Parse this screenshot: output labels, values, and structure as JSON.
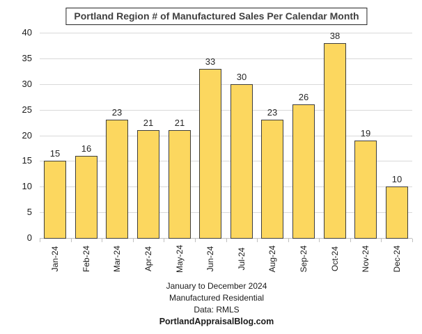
{
  "chart_data": {
    "type": "bar",
    "title": "Portland Region # of Manufactured Sales Per Calendar Month",
    "categories": [
      "Jan-24",
      "Feb-24",
      "Mar-24",
      "Apr-24",
      "May-24",
      "Jun-24",
      "Jul-24",
      "Aug-24",
      "Sep-24",
      "Oct-24",
      "Nov-24",
      "Dec-24"
    ],
    "values": [
      15,
      16,
      23,
      21,
      21,
      33,
      30,
      23,
      26,
      38,
      19,
      10
    ],
    "xlabel": "",
    "ylabel": "",
    "ylim": [
      0,
      40
    ],
    "yticks": [
      0,
      5,
      10,
      15,
      20,
      25,
      30,
      35,
      40
    ],
    "grid": true,
    "legend_position": "none",
    "data_labels": true,
    "bar_color": "#FCD75F",
    "bar_border_color": "#3d3d3d",
    "gridline_color": "#d9d9d9",
    "axis_color": "#bfbfbf"
  },
  "footer": {
    "line1": "January to December 2024",
    "line2": "Manufactured Residential",
    "line3": "Data: RMLS",
    "line4": "PortlandAppraisalBlog.com"
  }
}
